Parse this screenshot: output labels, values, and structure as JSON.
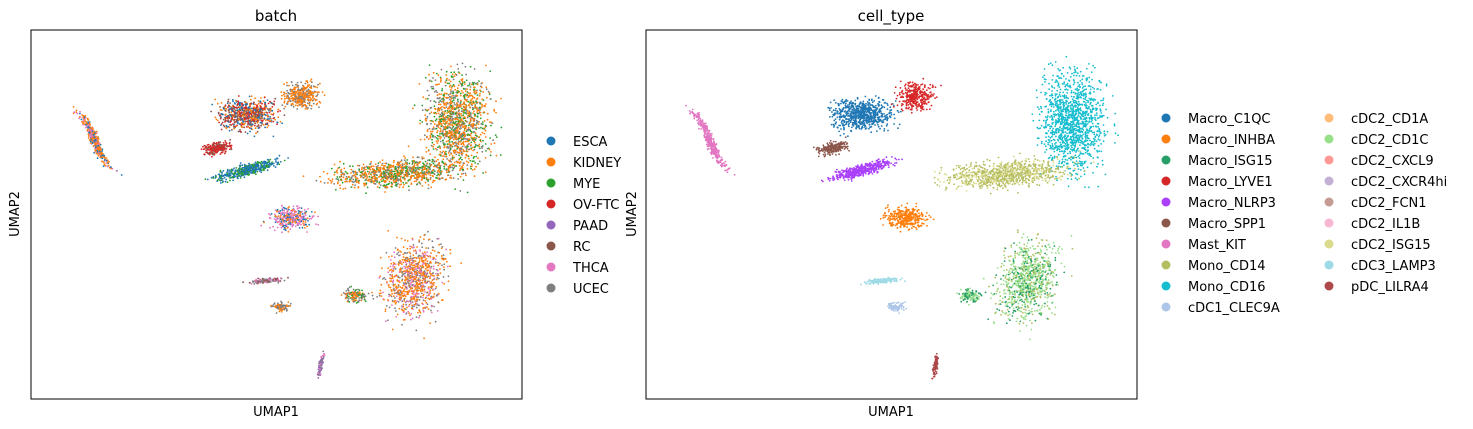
{
  "chart_data": [
    {
      "type": "scatter",
      "title": "batch",
      "xlabel": "UMAP1",
      "ylabel": "UMAP2",
      "grid": false,
      "legend_position": "right",
      "categories": [
        {
          "label": "ESCA",
          "color": "#1f77b4"
        },
        {
          "label": "KIDNEY",
          "color": "#ff7f0e"
        },
        {
          "label": "MYE",
          "color": "#2ca02c"
        },
        {
          "label": "OV-FTC",
          "color": "#d62728"
        },
        {
          "label": "PAAD",
          "color": "#9467bd"
        },
        {
          "label": "RC",
          "color": "#8c564b"
        },
        {
          "label": "THCA",
          "color": "#e377c2"
        },
        {
          "label": "UCEC",
          "color": "#7f7f7f"
        }
      ]
    },
    {
      "type": "scatter",
      "title": "cell_type",
      "xlabel": "UMAP1",
      "ylabel": "UMAP2",
      "grid": false,
      "legend_position": "right",
      "categories": [
        {
          "label": "Macro_C1QC",
          "color": "#1f77b4"
        },
        {
          "label": "Macro_INHBA",
          "color": "#ff7f0e"
        },
        {
          "label": "Macro_ISG15",
          "color": "#279e68"
        },
        {
          "label": "Macro_LYVE1",
          "color": "#d62728"
        },
        {
          "label": "Macro_NLRP3",
          "color": "#aa40fc"
        },
        {
          "label": "Macro_SPP1",
          "color": "#8c564b"
        },
        {
          "label": "Mast_KIT",
          "color": "#e377c2"
        },
        {
          "label": "Mono_CD14",
          "color": "#b5bd61"
        },
        {
          "label": "Mono_CD16",
          "color": "#17becf"
        },
        {
          "label": "cDC1_CLEC9A",
          "color": "#aec7e8"
        },
        {
          "label": "cDC2_CD1A",
          "color": "#ffbb78"
        },
        {
          "label": "cDC2_CD1C",
          "color": "#98df8a"
        },
        {
          "label": "cDC2_CXCL9",
          "color": "#ff9896"
        },
        {
          "label": "cDC2_CXCR4hi",
          "color": "#c5b0d5"
        },
        {
          "label": "cDC2_FCN1",
          "color": "#c49c94"
        },
        {
          "label": "cDC2_IL1B",
          "color": "#f7b6d2"
        },
        {
          "label": "cDC2_ISG15",
          "color": "#dbdb8d"
        },
        {
          "label": "cDC3_LAMP3",
          "color": "#9edae5"
        },
        {
          "label": "pDC_LILRA4",
          "color": "#ad494a"
        }
      ]
    }
  ]
}
